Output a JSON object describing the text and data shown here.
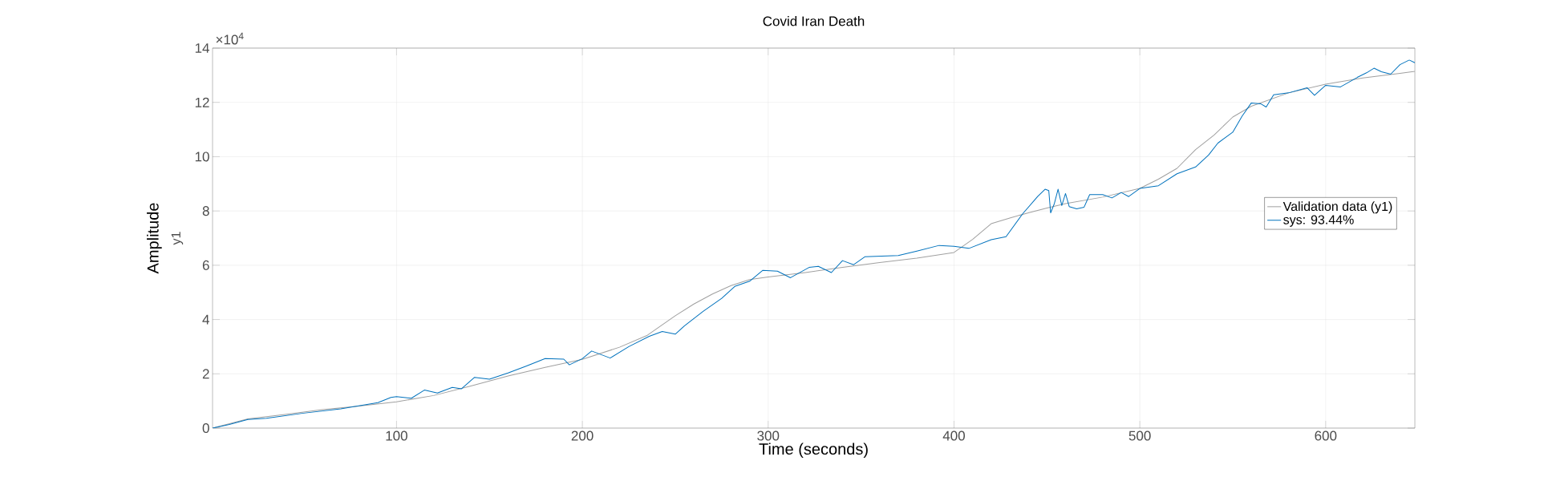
{
  "chart_data": {
    "type": "line",
    "title": "Covid Iran Death",
    "xlabel": "Time (seconds)",
    "ylabel": "Amplitude",
    "annotations": [
      "×10$^{4}$",
      "y1"
    ],
    "xlim": [
      1,
      648
    ],
    "xticks": [
      100,
      200,
      300,
      400,
      500,
      600
    ],
    "ylim": [
      0,
      14
    ],
    "yticks": [
      0,
      2,
      4,
      6,
      8,
      10,
      12,
      14
    ],
    "grid": true,
    "legend": "right",
    "series": [
      {
        "name": "Validation data (y1)",
        "color": "#a0a0a0",
        "x": [
          1,
          20,
          40,
          60,
          80,
          100,
          120,
          140,
          160,
          180,
          200,
          220,
          235,
          250,
          260,
          270,
          280,
          290,
          300,
          320,
          340,
          360,
          380,
          400,
          410,
          420,
          430,
          440,
          450,
          460,
          470,
          480,
          500,
          510,
          520,
          530,
          540,
          550,
          560,
          580,
          600,
          620,
          640,
          648
        ],
        "values": [
          0,
          0.34,
          0.5,
          0.68,
          0.81,
          0.97,
          1.2,
          1.55,
          1.92,
          2.24,
          2.53,
          2.98,
          3.42,
          4.14,
          4.57,
          4.94,
          5.25,
          5.47,
          5.57,
          5.73,
          5.92,
          6.1,
          6.26,
          6.47,
          6.95,
          7.53,
          7.74,
          7.93,
          8.11,
          8.27,
          8.39,
          8.51,
          8.83,
          9.17,
          9.57,
          10.26,
          10.8,
          11.46,
          11.86,
          12.35,
          12.67,
          12.9,
          13.07,
          13.14
        ]
      },
      {
        "name": "sys: 93.44%",
        "color": "#0072bd",
        "x": [
          1,
          10,
          20,
          30,
          50,
          70,
          90,
          97,
          100,
          108,
          115,
          122,
          130,
          135,
          142,
          150,
          160,
          170,
          180,
          190,
          193,
          200,
          205,
          215,
          225,
          236,
          243,
          250,
          255,
          265,
          275,
          282,
          290,
          297,
          305,
          312,
          322,
          327,
          334,
          340,
          346,
          352,
          370,
          380,
          392,
          400,
          408,
          420,
          428,
          437,
          445,
          449,
          451,
          452,
          454,
          456,
          458,
          460,
          462,
          466,
          470,
          473,
          480,
          485,
          490,
          494,
          500,
          510,
          520,
          530,
          537,
          542,
          550,
          555,
          560,
          565,
          568,
          572,
          580,
          590,
          594,
          600,
          608,
          617,
          622,
          626,
          630,
          635,
          640,
          645,
          648
        ],
        "values": [
          0,
          0.13,
          0.32,
          0.36,
          0.55,
          0.71,
          0.94,
          1.13,
          1.16,
          1.1,
          1.4,
          1.29,
          1.5,
          1.45,
          1.87,
          1.8,
          2.03,
          2.29,
          2.56,
          2.54,
          2.33,
          2.56,
          2.84,
          2.58,
          3.0,
          3.38,
          3.56,
          3.46,
          3.77,
          4.3,
          4.78,
          5.22,
          5.41,
          5.81,
          5.78,
          5.54,
          5.92,
          5.96,
          5.73,
          6.17,
          6.02,
          6.31,
          6.36,
          6.52,
          6.73,
          6.7,
          6.62,
          6.94,
          7.05,
          7.9,
          8.53,
          8.8,
          8.75,
          7.93,
          8.27,
          8.8,
          8.2,
          8.64,
          8.16,
          8.08,
          8.14,
          8.6,
          8.6,
          8.48,
          8.68,
          8.53,
          8.83,
          8.93,
          9.37,
          9.62,
          10.06,
          10.5,
          10.9,
          11.49,
          11.98,
          11.95,
          11.83,
          12.28,
          12.35,
          12.54,
          12.26,
          12.63,
          12.57,
          12.92,
          13.09,
          13.26,
          13.13,
          13.04,
          13.39,
          13.56,
          13.46
        ]
      }
    ]
  }
}
